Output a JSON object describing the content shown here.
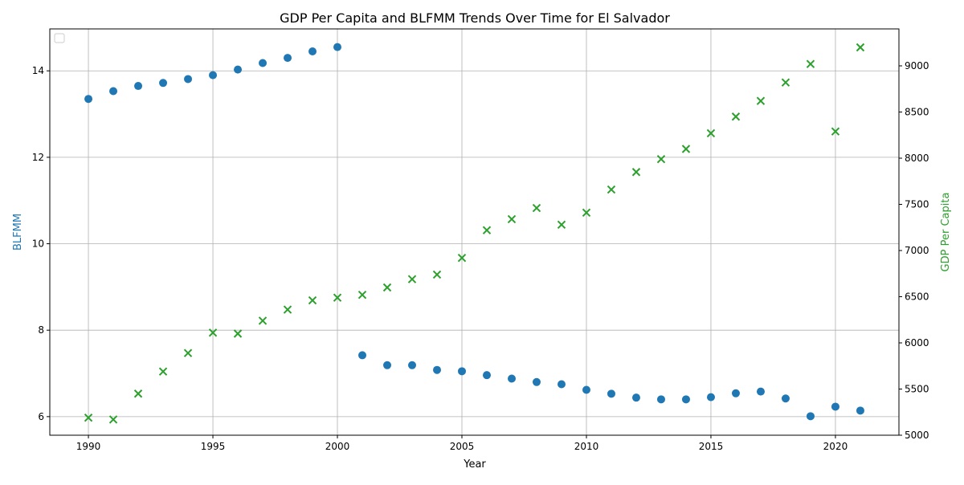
{
  "chart_data": {
    "type": "scatter",
    "title": "GDP Per Capita and BLFMM Trends Over Time for El Salvador",
    "xlabel": "Year",
    "ylabel_left": "BLFMM",
    "ylabel_right": "GDP Per Capita",
    "xlim": [
      1988.45,
      2022.55
    ],
    "ylim_left": [
      5.57,
      14.97
    ],
    "ylim_right": [
      5000,
      9400
    ],
    "xticks": [
      1990,
      1995,
      2000,
      2005,
      2010,
      2015,
      2020
    ],
    "yticks_left": [
      6,
      8,
      10,
      12,
      14
    ],
    "yticks_right": [
      5000,
      5500,
      6000,
      6500,
      7000,
      7500,
      8000,
      8500,
      9000
    ],
    "grid": true,
    "legend": {
      "position": "top-left",
      "entries": []
    },
    "colors": {
      "blfmm": "#1f77b4",
      "gdp": "#2ca02c"
    },
    "series": [
      {
        "name": "BLFMM",
        "axis": "left",
        "marker": "circle",
        "x": [
          1990,
          1991,
          1992,
          1993,
          1994,
          1995,
          1996,
          1997,
          1998,
          1999,
          2000,
          2001,
          2002,
          2003,
          2004,
          2005,
          2006,
          2007,
          2008,
          2009,
          2010,
          2011,
          2012,
          2013,
          2014,
          2015,
          2016,
          2017,
          2018,
          2019,
          2020,
          2021
        ],
        "y": [
          13.35,
          13.53,
          13.65,
          13.72,
          13.81,
          13.9,
          14.03,
          14.18,
          14.3,
          14.45,
          14.55,
          7.42,
          7.19,
          7.19,
          7.08,
          7.05,
          6.96,
          6.88,
          6.8,
          6.75,
          6.62,
          6.53,
          6.44,
          6.4,
          6.4,
          6.45,
          6.54,
          6.58,
          6.42,
          6.01,
          6.23,
          6.14
        ]
      },
      {
        "name": "GDP Per Capita",
        "axis": "right",
        "marker": "x",
        "x": [
          1990,
          1991,
          1992,
          1993,
          1994,
          1995,
          1996,
          1997,
          1998,
          1999,
          2000,
          2001,
          2002,
          2003,
          2004,
          2005,
          2006,
          2007,
          2008,
          2009,
          2010,
          2011,
          2012,
          2013,
          2014,
          2015,
          2016,
          2017,
          2018,
          2019,
          2020,
          2021
        ],
        "y": [
          5190,
          5170,
          5450,
          5690,
          5890,
          6110,
          6100,
          6240,
          6360,
          6460,
          6490,
          6520,
          6600,
          6690,
          6740,
          6920,
          7220,
          7340,
          7460,
          7280,
          7410,
          7660,
          7850,
          7990,
          8100,
          8270,
          8450,
          8620,
          8820,
          9020,
          8290,
          9200
        ]
      }
    ]
  }
}
